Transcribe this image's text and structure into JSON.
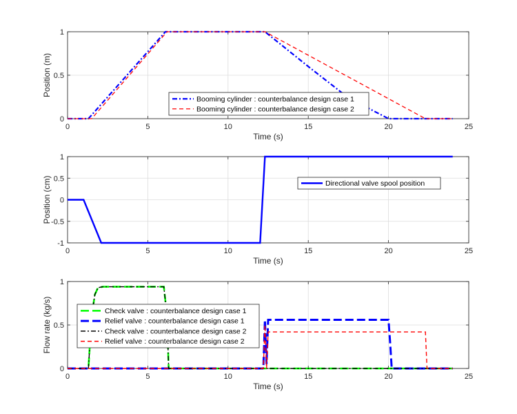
{
  "chart_data": [
    {
      "type": "line",
      "xlabel": "Time (s)",
      "ylabel": "Position (m)",
      "xlim": [
        0,
        25
      ],
      "ylim": [
        0,
        1
      ],
      "xticks": [
        "0",
        "5",
        "10",
        "15",
        "20",
        "25"
      ],
      "yticks": [
        "0",
        "0.5",
        "1"
      ],
      "grid": true,
      "legend_position": "lower-right",
      "series": [
        {
          "name": "Booming cylinder : counterbalance design case 1",
          "color": "#0000ff",
          "dash": "dash-dot",
          "x": [
            0,
            1.3,
            6.1,
            12.3,
            15.0,
            17.5,
            20.0,
            24
          ],
          "y": [
            0,
            0,
            1,
            1,
            0.6,
            0.24,
            0,
            0
          ]
        },
        {
          "name": "Booming cylinder : counterbalance design case 2",
          "color": "#ff0000",
          "dash": "dashed",
          "x": [
            0,
            1.5,
            6.2,
            12.3,
            22.3,
            24
          ],
          "y": [
            0,
            0,
            1,
            1,
            0,
            0
          ]
        }
      ]
    },
    {
      "type": "line",
      "xlabel": "Time (s)",
      "ylabel": "Position (cm)",
      "xlim": [
        0,
        25
      ],
      "ylim": [
        -1,
        1
      ],
      "xticks": [
        "0",
        "5",
        "10",
        "15",
        "20",
        "25"
      ],
      "yticks": [
        "-1",
        "-0.5",
        "0",
        "0.5",
        "1"
      ],
      "grid": true,
      "legend_position": "upper-right",
      "series": [
        {
          "name": "Directional valve spool position",
          "color": "#0000ff",
          "dash": "solid",
          "x": [
            0,
            1.0,
            2.1,
            12.0,
            12.3,
            24
          ],
          "y": [
            0,
            0,
            -1,
            -1,
            1,
            1
          ]
        }
      ]
    },
    {
      "type": "line",
      "xlabel": "Time (s)",
      "ylabel": "Flow rate (kg/s)",
      "xlim": [
        0,
        25
      ],
      "ylim": [
        0,
        1
      ],
      "xticks": [
        "0",
        "5",
        "10",
        "15",
        "20",
        "25"
      ],
      "yticks": [
        "0",
        "0.5",
        "1"
      ],
      "grid": true,
      "legend_position": "left",
      "series": [
        {
          "name": "Check valve : counterbalance design case 1",
          "color": "#00ff00",
          "dash": "long-dash",
          "x": [
            0,
            1.3,
            1.5,
            1.7,
            1.9,
            2.2,
            6.0,
            6.2,
            6.3,
            24
          ],
          "y": [
            0,
            0,
            0.6,
            0.85,
            0.93,
            0.94,
            0.94,
            0.6,
            0,
            0
          ]
        },
        {
          "name": "Relief valve : counterbalance design case 1",
          "color": "#0000ff",
          "dash": "long-dash",
          "x": [
            0,
            12.2,
            12.3,
            12.4,
            12.5,
            19.9,
            20.0,
            20.1,
            20.2,
            24
          ],
          "y": [
            0,
            0,
            0.56,
            0.05,
            0.56,
            0.56,
            0.56,
            0.3,
            0,
            0
          ]
        },
        {
          "name": "Check valve : counterbalance design case 2",
          "color": "#000000",
          "dash": "dash-dot",
          "x": [
            0,
            1.3,
            1.5,
            1.7,
            1.9,
            2.2,
            6.0,
            6.2,
            6.3,
            24
          ],
          "y": [
            0,
            0,
            0.6,
            0.85,
            0.93,
            0.94,
            0.94,
            0.6,
            0,
            0
          ]
        },
        {
          "name": "Relief valve : counterbalance design case 2",
          "color": "#ff0000",
          "dash": "dashed",
          "x": [
            0,
            12.2,
            12.3,
            12.4,
            12.5,
            22.3,
            22.4,
            24
          ],
          "y": [
            0,
            0,
            0.5,
            0,
            0.42,
            0.42,
            0,
            0
          ]
        }
      ]
    }
  ]
}
